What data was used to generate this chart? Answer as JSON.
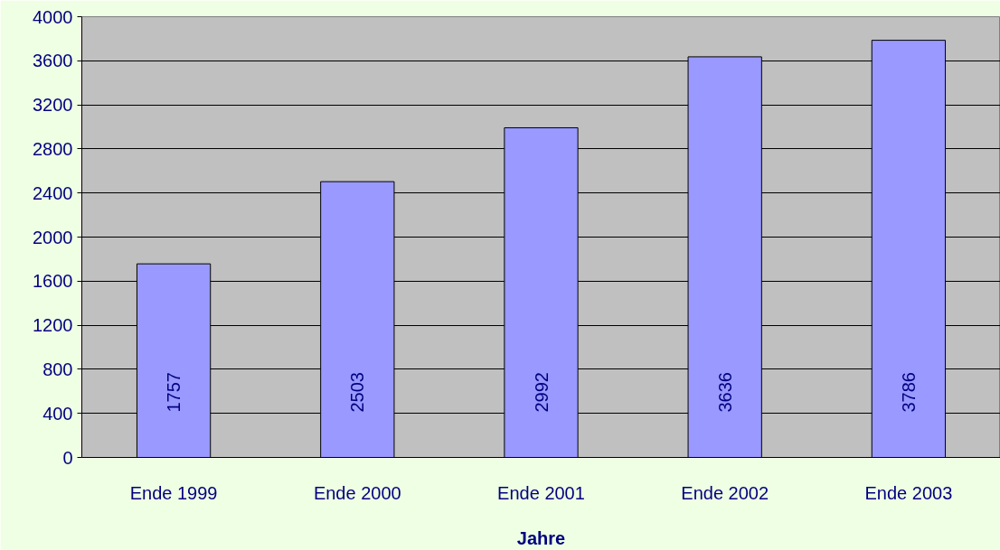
{
  "chart_data": {
    "type": "bar",
    "xlabel": "Jahre",
    "categories": [
      "Ende 1999",
      "Ende 2000",
      "Ende 2001",
      "Ende 2002",
      "Ende 2003"
    ],
    "values": [
      1757,
      2503,
      2992,
      3636,
      3786
    ],
    "color": "#9999ff",
    "data_labels": true,
    "ylim": [
      0,
      4000
    ],
    "yticks": [
      0,
      400,
      800,
      1200,
      1600,
      2000,
      2400,
      2800,
      3200,
      3600,
      4000
    ],
    "grid": "y"
  }
}
